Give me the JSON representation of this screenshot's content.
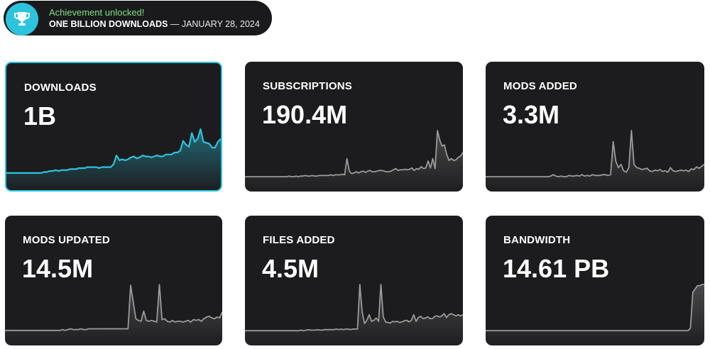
{
  "achievement": {
    "status": "Achievement unlocked!",
    "title": "ONE BILLION DOWNLOADS",
    "separator": " — ",
    "date": "JANUARY 28, 2024",
    "icon": "trophy-icon",
    "accent_color": "#2cc4dd",
    "status_color": "#7ee081"
  },
  "stats": [
    {
      "key": "downloads",
      "label": "DOWNLOADS",
      "value": "1B",
      "series": [
        3,
        3,
        3,
        3,
        3,
        3,
        3,
        3,
        3,
        3,
        3,
        3,
        3,
        4,
        4,
        5,
        5,
        6,
        5,
        6,
        6,
        6,
        7,
        7,
        7,
        8,
        8,
        8,
        9,
        9,
        9,
        9,
        8,
        9,
        9,
        9,
        9,
        12,
        21,
        16,
        17,
        16,
        17,
        19,
        20,
        18,
        19,
        21,
        20,
        20,
        19,
        20,
        21,
        20,
        20,
        22,
        22,
        22,
        24,
        24,
        26,
        36,
        32,
        30,
        44,
        35,
        38,
        48,
        35,
        34,
        33,
        29,
        29,
        35,
        38
      ]
    },
    {
      "key": "subscriptions",
      "label": "SUBSCRIPTIONS",
      "value": "190.4M",
      "series": [
        1,
        1,
        1,
        1,
        1,
        1,
        1,
        1,
        1,
        1,
        1,
        1,
        1,
        1,
        1,
        1,
        1,
        1,
        1,
        2,
        1,
        1,
        2,
        1,
        2,
        2,
        3,
        2,
        2,
        3,
        2,
        2,
        3,
        3,
        3,
        3,
        3,
        4,
        3,
        4,
        4,
        4,
        5,
        4,
        30,
        10,
        6,
        7,
        9,
        7,
        9,
        10,
        8,
        10,
        11,
        9,
        9,
        10,
        11,
        11,
        10,
        9,
        9,
        10,
        12,
        14,
        11,
        12,
        12,
        13,
        12,
        13,
        15,
        11,
        14,
        13,
        17,
        14,
        15,
        26,
        15,
        30,
        14,
        75,
        60,
        50,
        52,
        37,
        27,
        30,
        27,
        28,
        32,
        34,
        40
      ]
    },
    {
      "key": "mods_added",
      "label": "MODS ADDED",
      "value": "3.3M",
      "series": [
        1,
        1,
        1,
        1,
        1,
        1,
        1,
        1,
        1,
        1,
        1,
        1,
        1,
        1,
        1,
        1,
        1,
        1,
        1,
        1,
        1,
        1,
        1,
        1,
        1,
        2,
        4,
        2,
        1,
        2,
        1,
        1,
        3,
        2,
        2,
        3,
        2,
        4,
        2,
        3,
        2,
        4,
        3,
        3,
        3,
        4,
        4,
        3,
        4,
        55,
        25,
        15,
        20,
        10,
        8,
        15,
        72,
        20,
        15,
        14,
        12,
        13,
        14,
        10,
        9,
        11,
        10,
        12,
        9,
        10,
        8,
        15,
        10,
        9,
        10,
        11,
        10,
        11,
        9,
        13,
        12,
        16,
        14,
        17,
        20
      ]
    },
    {
      "key": "mods_updated",
      "label": "MODS UPDATED",
      "value": "14.5M",
      "series": [
        1,
        1,
        1,
        1,
        1,
        1,
        1,
        1,
        1,
        1,
        1,
        1,
        1,
        1,
        1,
        1,
        1,
        1,
        1,
        1,
        1,
        1,
        2,
        1,
        2,
        3,
        2,
        2,
        2,
        3,
        2,
        2,
        3,
        3,
        3,
        3,
        3,
        3,
        3,
        3,
        3,
        3,
        3,
        3,
        3,
        3,
        3,
        3,
        55,
        35,
        15,
        13,
        12,
        24,
        13,
        12,
        13,
        12,
        11,
        56,
        14,
        15,
        12,
        11,
        13,
        11,
        12,
        12,
        11,
        12,
        13,
        11,
        14,
        13,
        14,
        12,
        15,
        17,
        18,
        16,
        15,
        17,
        16,
        23
      ]
    },
    {
      "key": "files_added",
      "label": "FILES ADDED",
      "value": "4.5M",
      "series": [
        1,
        1,
        1,
        1,
        1,
        1,
        1,
        1,
        1,
        1,
        1,
        1,
        1,
        1,
        1,
        1,
        1,
        1,
        1,
        1,
        1,
        1,
        1,
        1,
        2,
        1,
        2,
        3,
        2,
        2,
        2,
        3,
        2,
        2,
        3,
        3,
        3,
        3,
        3,
        4,
        3,
        4,
        3,
        4,
        4,
        3,
        4,
        4,
        4,
        85,
        35,
        14,
        20,
        30,
        18,
        20,
        24,
        18,
        85,
        26,
        17,
        16,
        15,
        18,
        17,
        18,
        16,
        17,
        19,
        20,
        17,
        20,
        30,
        18,
        25,
        27,
        23,
        24,
        26,
        23,
        23,
        27,
        28,
        26,
        28,
        32,
        25,
        30,
        32,
        30,
        28,
        30,
        28,
        30
      ]
    },
    {
      "key": "bandwidth",
      "label": "BANDWIDTH",
      "value": "14.61 PB",
      "series": [
        1,
        1,
        1,
        1,
        1,
        1,
        1,
        1,
        1,
        1,
        1,
        1,
        1,
        1,
        1,
        1,
        1,
        1,
        1,
        1,
        1,
        1,
        1,
        1,
        1,
        1,
        1,
        1,
        1,
        1,
        1,
        1,
        1,
        1,
        1,
        1,
        1,
        1,
        1,
        1,
        1,
        1,
        1,
        1,
        1,
        1,
        1,
        1,
        1,
        1,
        1,
        1,
        1,
        1,
        1,
        1,
        1,
        1,
        1,
        1,
        1,
        1,
        1,
        1,
        1,
        1,
        1,
        1,
        1,
        1,
        1,
        1,
        1,
        1,
        1,
        1,
        1,
        1,
        1,
        1,
        1,
        1,
        1,
        1,
        1,
        1,
        1,
        1,
        1,
        5,
        60,
        65,
        70,
        70,
        72,
        72
      ]
    }
  ],
  "colors": {
    "card_bg": "#1c1c1e",
    "active_line": "#2cc4dd",
    "inactive_line": "#9a9a9a"
  }
}
